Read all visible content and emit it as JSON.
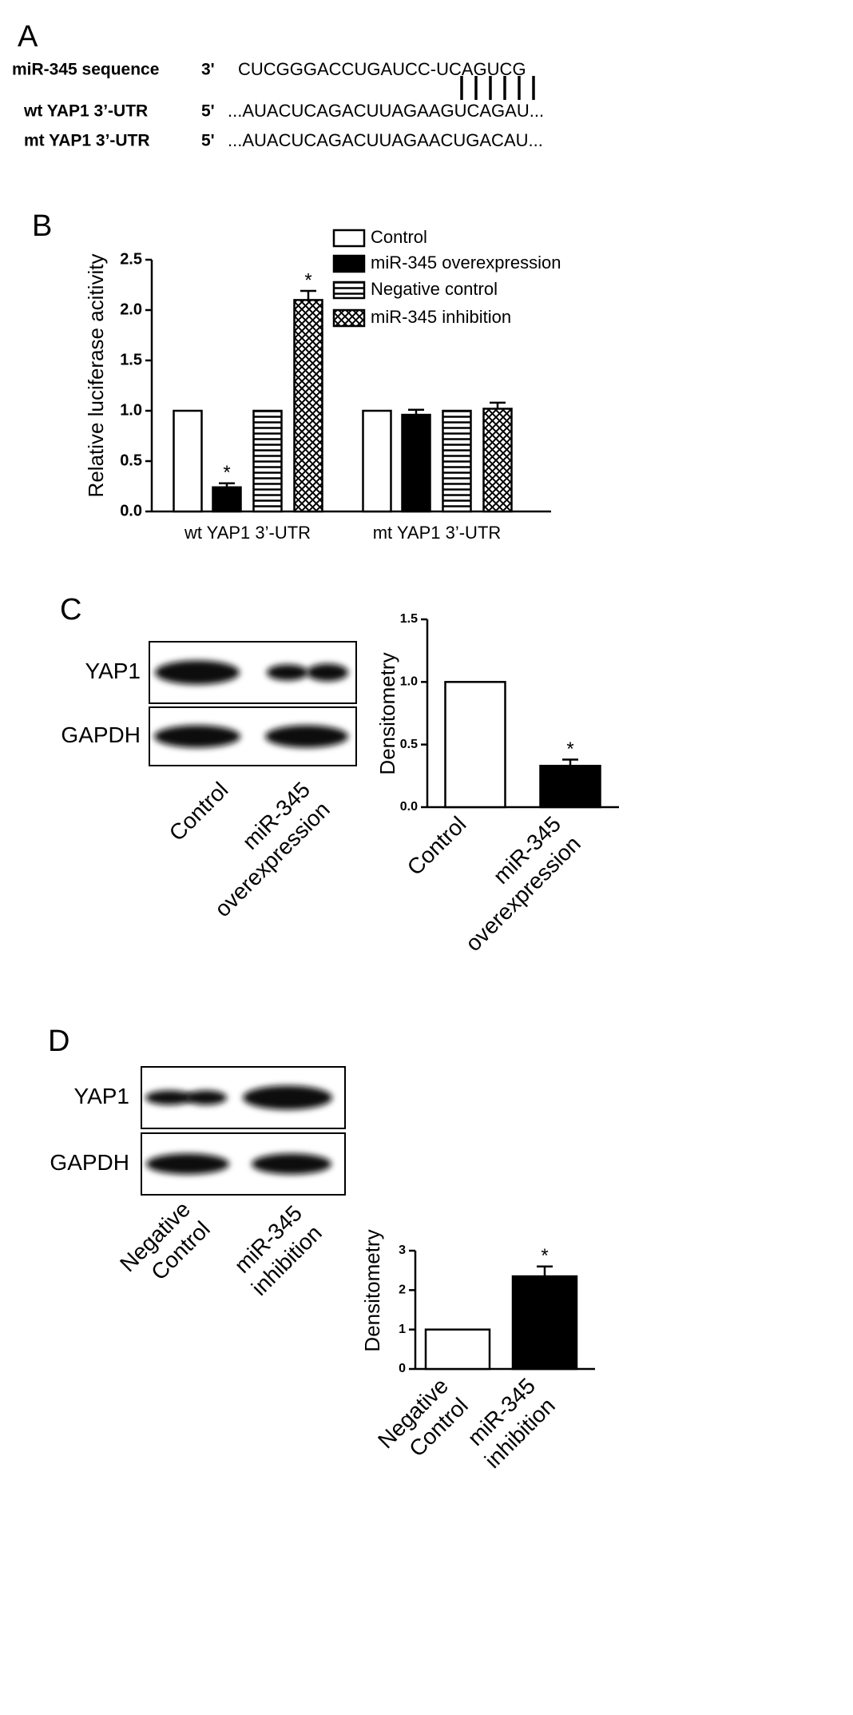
{
  "panel_a": {
    "label": "A",
    "rows": [
      {
        "name": "miR-345 sequence",
        "end": "3'",
        "sequence": "CUCGGGACCUGAUCC-UCAGUCG"
      },
      {
        "name": "wt YAP1 3’-UTR",
        "end": "5'",
        "sequence": "...AUACUCAGACUUAGAAGUCAGAU..."
      },
      {
        "name": "mt YAP1 3’-UTR",
        "end": "5'",
        "sequence": "...AUACUCAGACUUAGAACUGACAU..."
      }
    ]
  },
  "chart_data": [
    {
      "type": "bar",
      "panel": "B",
      "y_label": "Relative luciferase acitivity",
      "categories": [
        "wt YAP1 3’-UTR",
        "mt YAP1 3’-UTR"
      ],
      "series": [
        {
          "name": "Control",
          "color": "#ffffff",
          "hatch": "none",
          "values": [
            1.0,
            1.0
          ]
        },
        {
          "name": "miR-345 overexpression",
          "color": "#000000",
          "hatch": "none",
          "values": [
            0.24,
            0.96
          ],
          "errors": [
            0.04,
            0.05
          ],
          "markers": [
            "*",
            null
          ]
        },
        {
          "name": "Negative control",
          "color": "#ffffff",
          "hatch": "horizontal",
          "values": [
            1.0,
            1.0
          ]
        },
        {
          "name": "miR-345 inhibition",
          "color": "#ffffff",
          "hatch": "cross",
          "values": [
            2.1,
            1.02
          ],
          "errors": [
            0.09,
            0.06
          ],
          "markers": [
            "*",
            null
          ]
        }
      ],
      "ylim": [
        0,
        2.5
      ],
      "yticks": [
        {
          "value": 0,
          "label": "0.0"
        },
        0.5,
        {
          "value": 1,
          "label": "1.0"
        },
        1.5,
        {
          "value": 2,
          "label": "2.0"
        },
        2.5
      ],
      "legend": "top-right"
    },
    {
      "type": "bar",
      "panel": "C",
      "y_label": "Densitometry",
      "categories": [
        "Control",
        "miR-345\noverexpression"
      ],
      "values": [
        1.0,
        0.33
      ],
      "colors": [
        "#ffffff",
        "#000000"
      ],
      "errors": [
        null,
        0.05
      ],
      "markers": [
        null,
        "*"
      ],
      "ylim": [
        0,
        1.5
      ],
      "yticks": [
        {
          "value": 0,
          "label": "0.0"
        },
        0.5,
        {
          "value": 1,
          "label": "1.0"
        },
        1.5
      ]
    },
    {
      "type": "bar",
      "panel": "D",
      "y_label": "Densitometry",
      "categories": [
        "Negative\nControl",
        "miR-345\ninhibition"
      ],
      "values": [
        1,
        2.35
      ],
      "colors": [
        "#ffffff",
        "#000000"
      ],
      "errors": [
        null,
        0.25
      ],
      "markers": [
        null,
        "*"
      ],
      "ylim": [
        0,
        3
      ],
      "yticks": [
        0,
        1,
        2,
        3
      ]
    }
  ],
  "blots": [
    {
      "rows": [
        "YAP1",
        "GAPDH"
      ],
      "lanes": [
        "Control",
        "miR-345\noverexpression"
      ]
    },
    {
      "rows": [
        "YAP1",
        "GAPDH"
      ],
      "lanes": [
        "Negative\nControl",
        "miR-345\ninhibition"
      ]
    }
  ]
}
